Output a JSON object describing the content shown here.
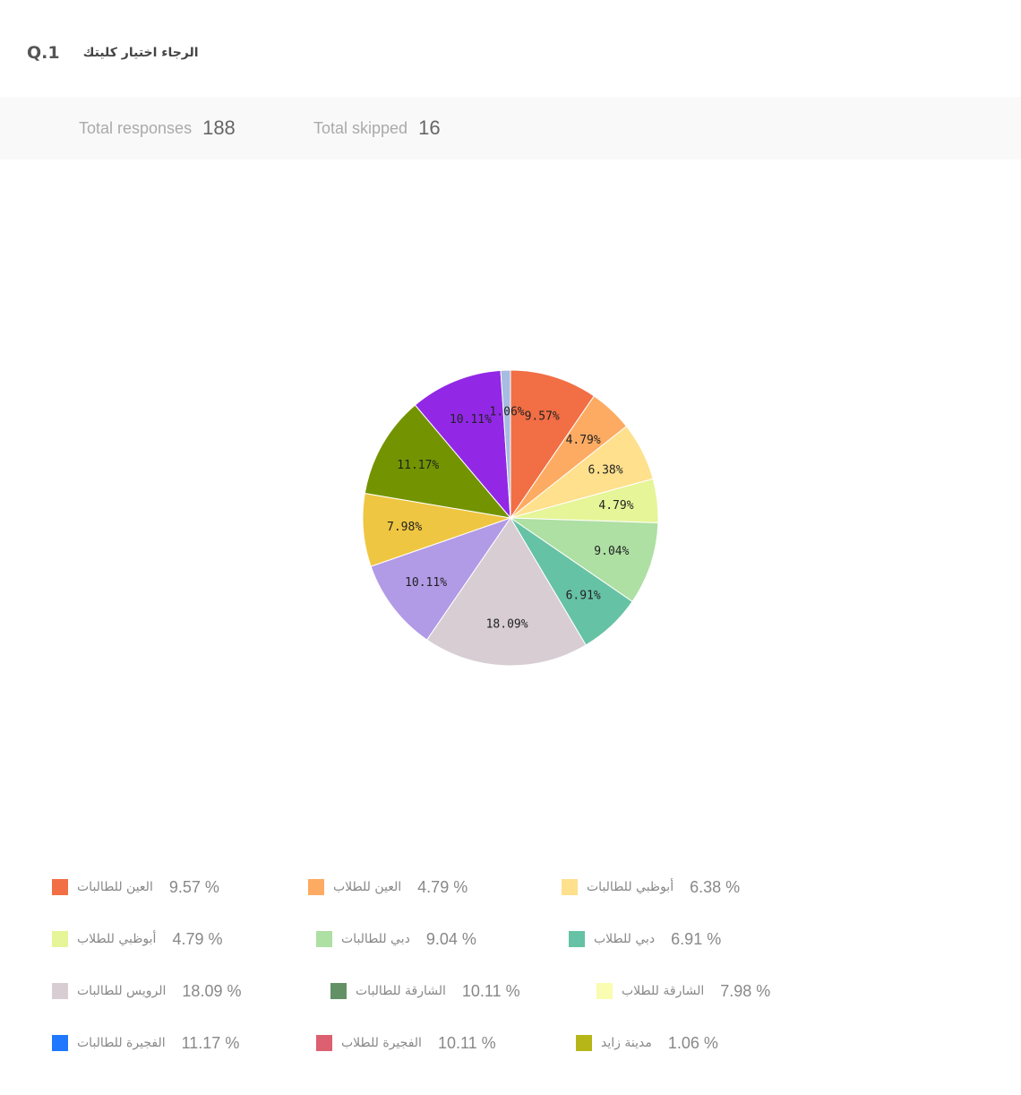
{
  "question": {
    "number": "Q.1",
    "text": "الرجاء اختيار كليتك"
  },
  "summary": {
    "responses_label": "Total responses",
    "responses_value": "188",
    "skipped_label": "Total skipped",
    "skipped_value": "16"
  },
  "chart_data": {
    "type": "pie",
    "categories": [
      "العين للطالبات",
      "العين للطلاب",
      "أبوظبي للطالبات",
      "أبوظبي للطلاب",
      "دبي للطالبات",
      "دبي للطلاب",
      "الرويس للطالبات",
      "الشارقة للطالبات",
      "الشارقة للطلاب",
      "الفجيرة للطالبات",
      "الفجيرة للطلاب",
      "مدينة زايد"
    ],
    "values": [
      9.57,
      4.79,
      6.38,
      4.79,
      9.04,
      6.91,
      18.09,
      10.11,
      7.98,
      11.17,
      10.11,
      1.06
    ],
    "slice_labels": [
      "9.57%",
      "4.79%",
      "6.38%",
      "4.79%",
      "9.04%",
      "6.91%",
      "18.09%",
      "10.11%",
      "7.98%",
      "11.17%",
      "10.11%",
      "1.06%"
    ],
    "slice_colors": [
      "#f26e45",
      "#fdab62",
      "#fee08d",
      "#e5f597",
      "#aedfa3",
      "#66c2a4",
      "#d7cdd3",
      "#b19ae6",
      "#efc641",
      "#739400",
      "#9228e6",
      "#a6bce0"
    ],
    "legend_colors": [
      "#f26e45",
      "#fdab62",
      "#fee08d",
      "#e5f597",
      "#aedfa3",
      "#66c2a4",
      "#d7cdd3",
      "#629166",
      "#fafcb1",
      "#1f78ff",
      "#dc6070",
      "#b6b618"
    ],
    "legend_values": [
      "9.57 %",
      "4.79 %",
      "6.38 %",
      "4.79 %",
      "9.04 %",
      "6.91 %",
      "18.09 %",
      "10.11 %",
      "7.98 %",
      "11.17 %",
      "10.11 %",
      "1.06 %"
    ],
    "legend_placement": "bottom"
  }
}
